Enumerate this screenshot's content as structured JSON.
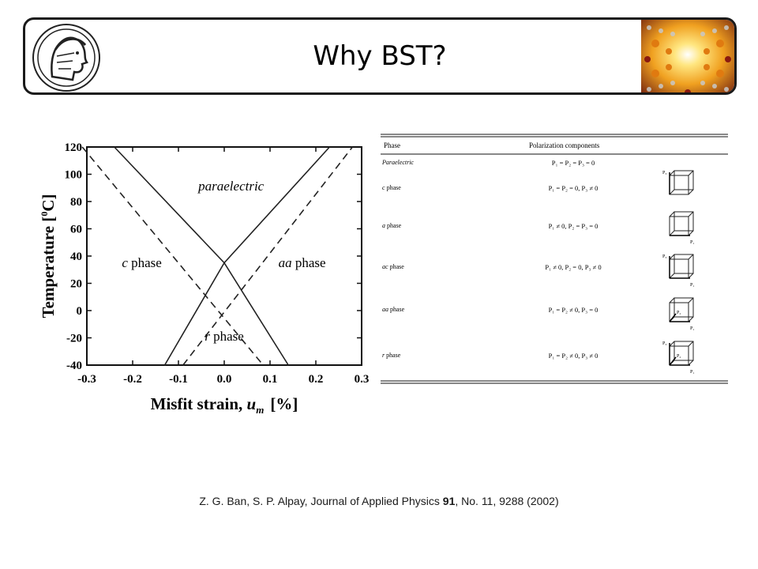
{
  "slide": {
    "title": "Why BST?",
    "logo_icon": "minerva-head-logo-icon",
    "photo_icon": "crystal-lattice-image"
  },
  "chart_data": {
    "type": "line",
    "xlabel_main": "Misfit strain, ",
    "xlabel_var": "u",
    "xlabel_sub": "m",
    "xlabel_unit": "[%]",
    "ylabel": "Temperature [",
    "ylabel_sup": "0",
    "ylabel_end": "C]",
    "xlim": [
      -0.3,
      0.3
    ],
    "ylim": [
      -40,
      120
    ],
    "xticks": [
      "-0.3",
      "-0.2",
      "-0.1",
      "0.0",
      "0.1",
      "0.2",
      "0.3"
    ],
    "xtick_values": [
      -0.3,
      -0.2,
      -0.1,
      0.0,
      0.1,
      0.2,
      0.3
    ],
    "yticks": [
      "120",
      "100",
      "80",
      "60",
      "40",
      "20",
      "0",
      "-20",
      "-40"
    ],
    "ytick_values": [
      120,
      100,
      80,
      60,
      40,
      20,
      0,
      -20,
      -40
    ],
    "series": [
      {
        "style": "solid",
        "x": [
          -0.24,
          0.0,
          0.14
        ],
        "y": [
          120,
          35,
          -40
        ]
      },
      {
        "style": "solid",
        "x": [
          -0.13,
          0.0,
          0.23
        ],
        "y": [
          -40,
          35,
          120
        ]
      },
      {
        "style": "dashed",
        "x": [
          -0.31,
          0.085
        ],
        "y": [
          120,
          -40
        ]
      },
      {
        "style": "dashed",
        "x": [
          -0.09,
          0.28
        ],
        "y": [
          -40,
          120
        ]
      }
    ],
    "annotations": [
      {
        "text": "paraelectric",
        "x": 0.015,
        "y": 88
      },
      {
        "text_var": "c",
        "text": " phase",
        "x": -0.18,
        "y": 32
      },
      {
        "text_var": "aa",
        "text": " phase",
        "x": 0.17,
        "y": 32
      },
      {
        "text_var": "r",
        "text": " phase",
        "x": 0.0,
        "y": -22
      }
    ]
  },
  "table": {
    "header": [
      "Phase",
      "Polarization components"
    ],
    "rows": [
      {
        "phase": "Paraelectric",
        "components": "P₁ = P₂ = P₃ = 0",
        "diagram": ""
      },
      {
        "phase": "c phase",
        "components": "P₁ = P₂ = 0, P₃ ≠ 0",
        "diagram": "cube-c-icon"
      },
      {
        "phase": "a phase",
        "components": "P₁ ≠ 0, P₂ = P₃ = 0",
        "diagram": "cube-a-icon"
      },
      {
        "phase": "ac phase",
        "components": "P₁ ≠ 0, P₂ = 0, P₃ ≠ 0",
        "diagram": "cube-ac-icon"
      },
      {
        "phase": "aa phase",
        "components": "P₁ = P₂ ≠ 0, P₃ = 0",
        "diagram": "cube-aa-icon"
      },
      {
        "phase": "r phase",
        "components": "P₁ = P₂ ≠ 0, P₃ ≠ 0",
        "diagram": "cube-r-icon"
      }
    ],
    "diagram_labels": {
      "p1": "P₁",
      "p2": "P₂",
      "p3": "P₃"
    }
  },
  "citation": {
    "authors": "Z. G. Ban, S. P. Alpay, Journal of Applied Physics ",
    "volume": "91",
    "rest": ", No. 11, 9288  (2002)"
  }
}
